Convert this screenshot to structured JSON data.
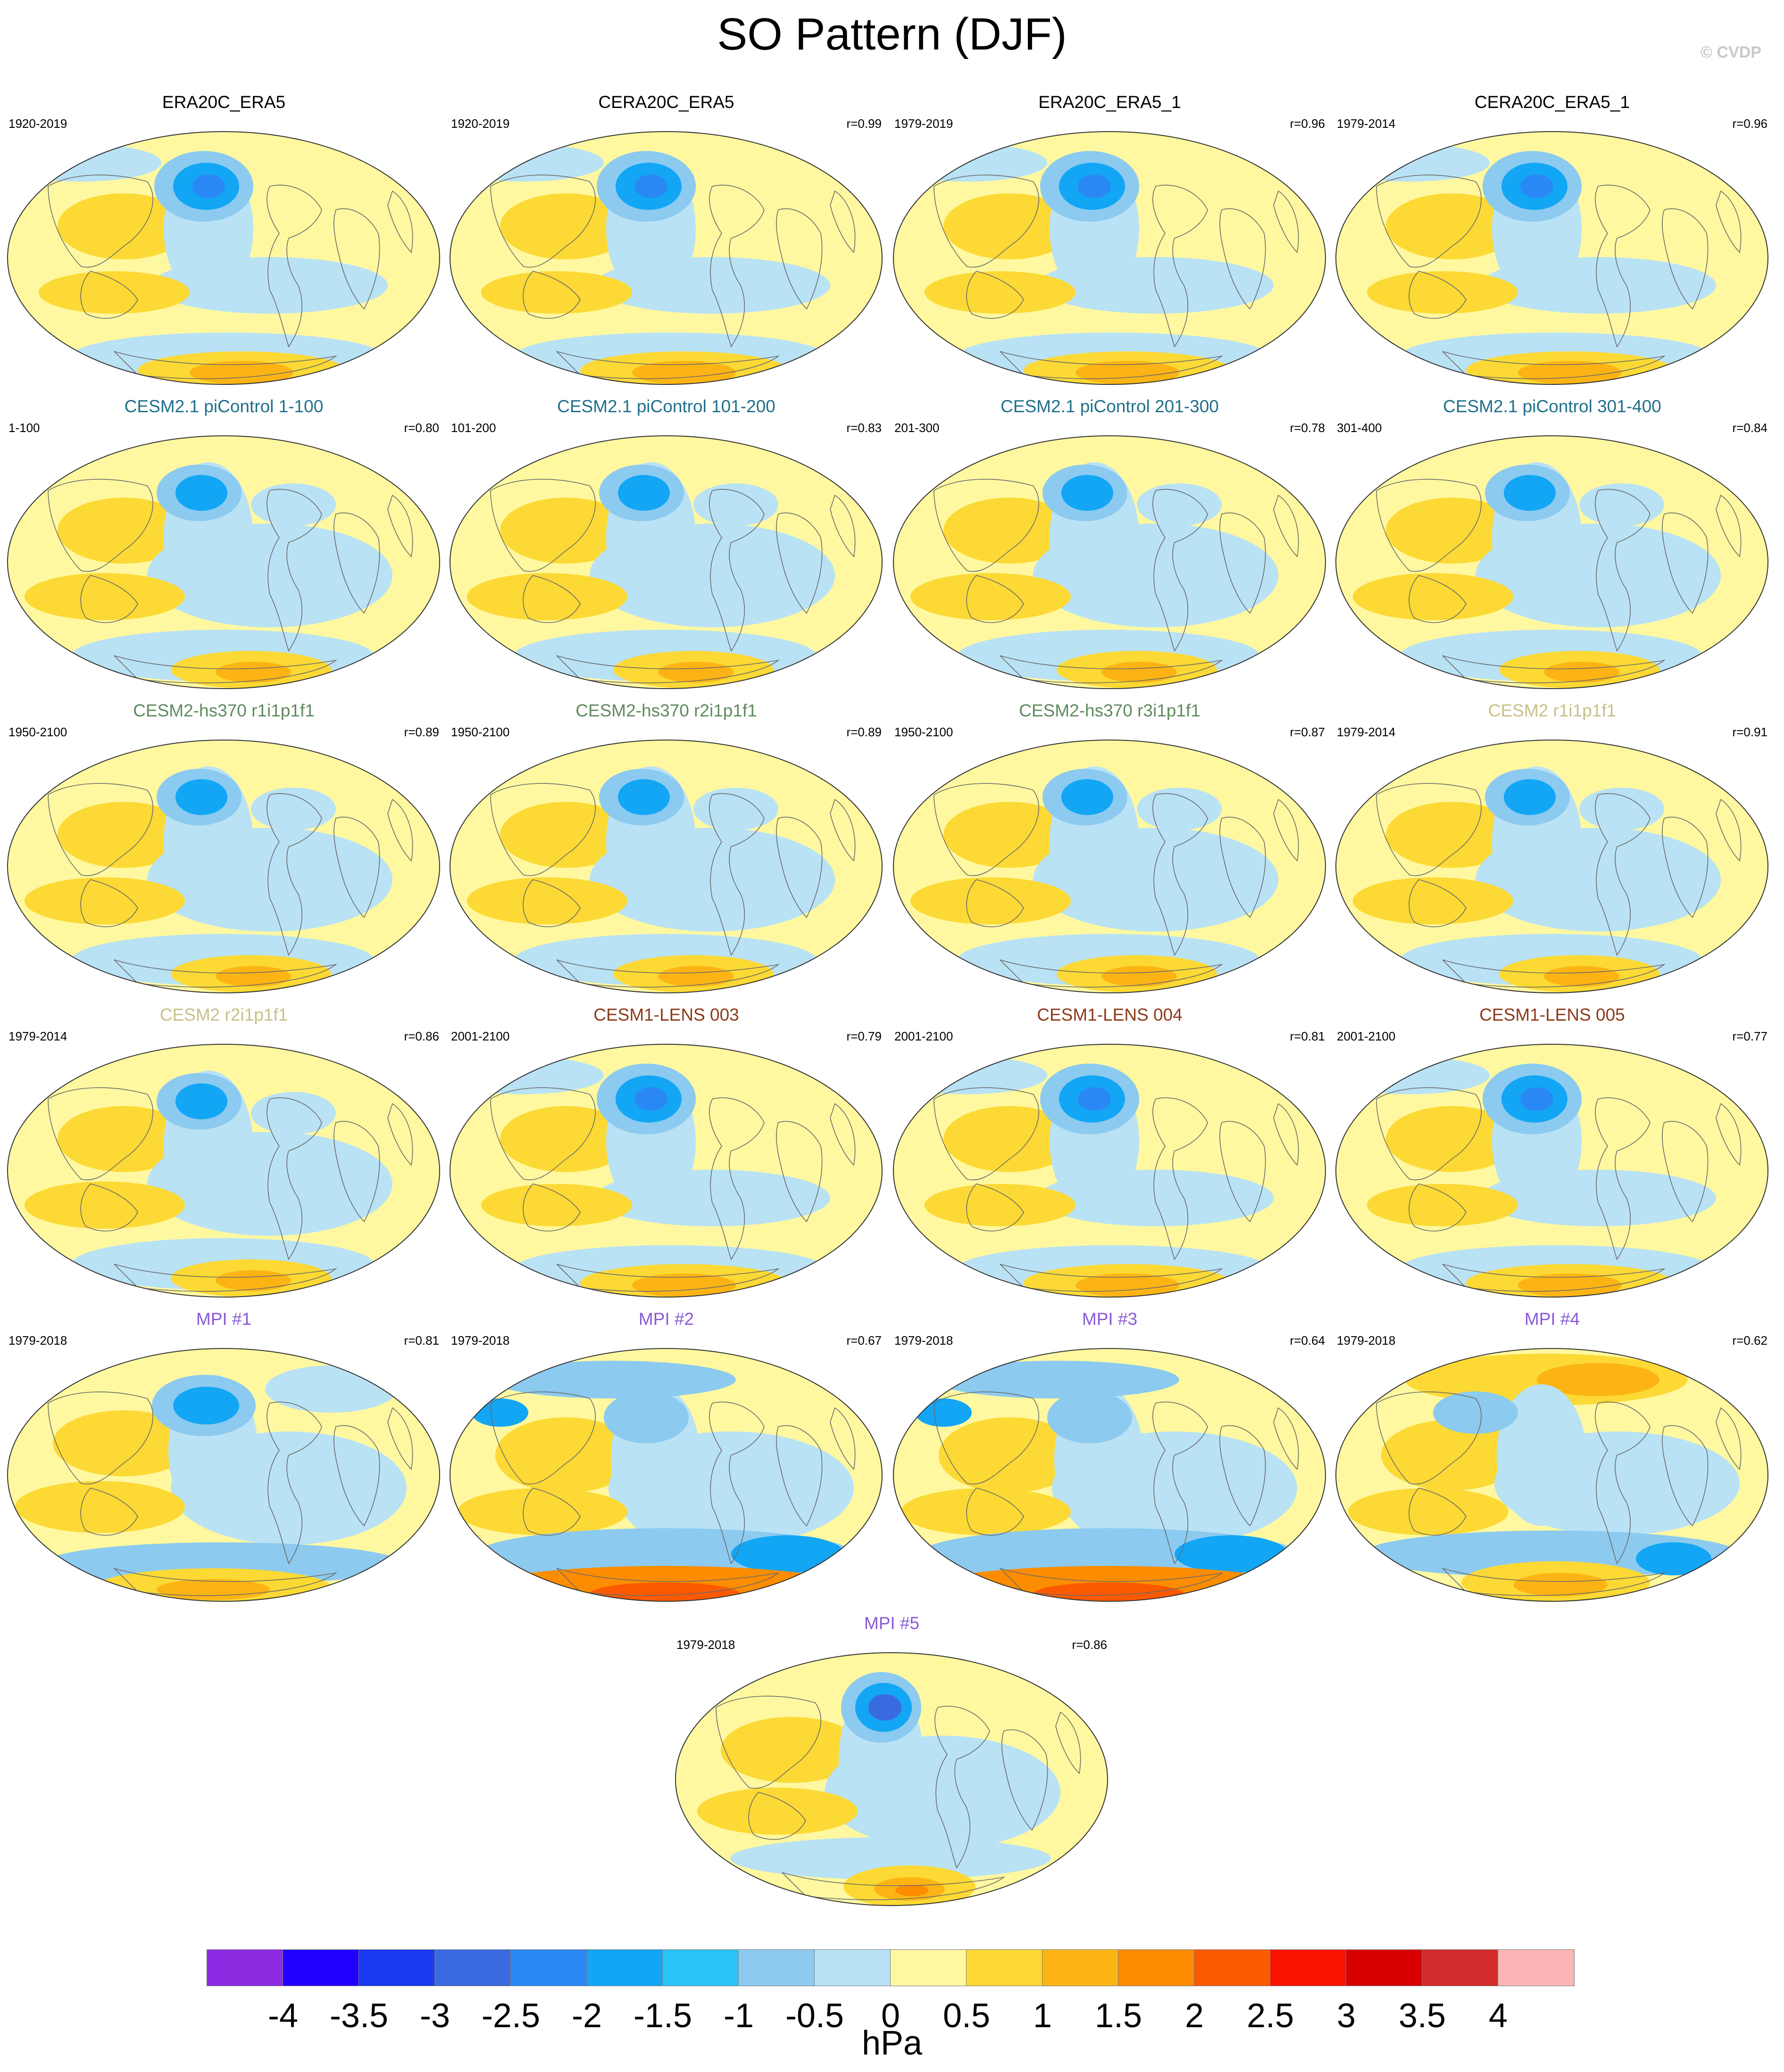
{
  "header": {
    "title": "SO Pattern (DJF)",
    "credit": "© CVDP"
  },
  "panels": [
    {
      "title": "ERA20C_ERA5",
      "period": "1920-2019",
      "r": "",
      "title_color": "#000000",
      "style": 0
    },
    {
      "title": "CERA20C_ERA5",
      "period": "1920-2019",
      "r": "r=0.99",
      "title_color": "#000000",
      "style": 0
    },
    {
      "title": "ERA20C_ERA5_1",
      "period": "1979-2019",
      "r": "r=0.96",
      "title_color": "#000000",
      "style": 0
    },
    {
      "title": "CERA20C_ERA5_1",
      "period": "1979-2014",
      "r": "r=0.96",
      "title_color": "#000000",
      "style": 0
    },
    {
      "title": "CESM2.1 piControl 1-100",
      "period": "1-100",
      "r": "r=0.80",
      "title_color": "#1f6f8b",
      "style": 1
    },
    {
      "title": "CESM2.1 piControl 101-200",
      "period": "101-200",
      "r": "r=0.83",
      "title_color": "#1f6f8b",
      "style": 1
    },
    {
      "title": "CESM2.1 piControl 201-300",
      "period": "201-300",
      "r": "r=0.78",
      "title_color": "#1f6f8b",
      "style": 1
    },
    {
      "title": "CESM2.1 piControl 301-400",
      "period": "301-400",
      "r": "r=0.84",
      "title_color": "#1f6f8b",
      "style": 1
    },
    {
      "title": "CESM2-hs370 r1i1p1f1",
      "period": "1950-2100",
      "r": "r=0.89",
      "title_color": "#5f8a5f",
      "style": 1
    },
    {
      "title": "CESM2-hs370 r2i1p1f1",
      "period": "1950-2100",
      "r": "r=0.89",
      "title_color": "#5f8a5f",
      "style": 1
    },
    {
      "title": "CESM2-hs370 r3i1p1f1",
      "period": "1950-2100",
      "r": "r=0.87",
      "title_color": "#5f8a5f",
      "style": 1
    },
    {
      "title": "CESM2 r1i1p1f1",
      "period": "1979-2014",
      "r": "r=0.91",
      "title_color": "#c9c08a",
      "style": 1
    },
    {
      "title": "CESM2 r2i1p1f1",
      "period": "1979-2014",
      "r": "r=0.86",
      "title_color": "#c9c08a",
      "style": 1
    },
    {
      "title": "CESM1-LENS 003",
      "period": "2001-2100",
      "r": "r=0.79",
      "title_color": "#8b3a1a",
      "style": 0
    },
    {
      "title": "CESM1-LENS 004",
      "period": "2001-2100",
      "r": "r=0.81",
      "title_color": "#8b3a1a",
      "style": 0
    },
    {
      "title": "CESM1-LENS 005",
      "period": "2001-2100",
      "r": "r=0.77",
      "title_color": "#8b3a1a",
      "style": 0
    },
    {
      "title": "MPI #1",
      "period": "1979-2018",
      "r": "r=0.81",
      "title_color": "#8a5ad6",
      "style": 2
    },
    {
      "title": "MPI #2",
      "period": "1979-2018",
      "r": "r=0.67",
      "title_color": "#8a5ad6",
      "style": 3
    },
    {
      "title": "MPI #3",
      "period": "1979-2018",
      "r": "r=0.64",
      "title_color": "#8a5ad6",
      "style": 3
    },
    {
      "title": "MPI #4",
      "period": "1979-2018",
      "r": "r=0.62",
      "title_color": "#8a5ad6",
      "style": 4
    },
    {
      "title": "MPI #5",
      "period": "1979-2018",
      "r": "r=0.86",
      "title_color": "#8a5ad6",
      "style": 5
    }
  ],
  "colorbar": {
    "colors": [
      "#8a2be2",
      "#2200ff",
      "#1a3af0",
      "#3a6ae0",
      "#2a88f5",
      "#12a6f5",
      "#2cc4f8",
      "#8ccaf0",
      "#b9e2f5",
      "#fff8a0",
      "#fcd934",
      "#fcb414",
      "#fc8c00",
      "#fc5a00",
      "#fa1400",
      "#d80000",
      "#d22c2c",
      "#fcb4b4"
    ],
    "ticks": [
      "-4",
      "-3.5",
      "-3",
      "-2.5",
      "-2",
      "-1.5",
      "-1",
      "-0.5",
      "0",
      "0.5",
      "1",
      "1.5",
      "2",
      "2.5",
      "3",
      "3.5",
      "4"
    ],
    "units": "hPa"
  }
}
